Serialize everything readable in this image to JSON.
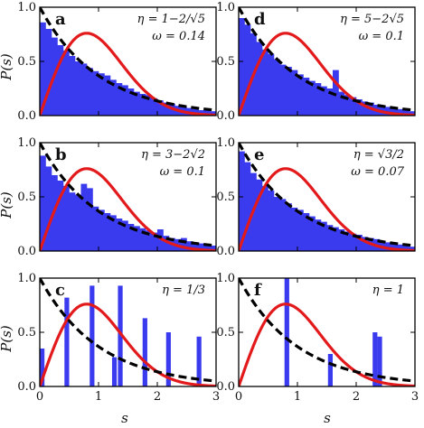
{
  "figure": {
    "x_label": "s",
    "y_label": "P(s)"
  },
  "colors": {
    "histogram": "#3a3aee",
    "red_curve": "#e31a1c",
    "dashed_curve": "#000000",
    "axis": "#000000"
  },
  "chart_data": [
    {
      "panel": "a",
      "type": "bar",
      "annotation": {
        "line1": "η = 1−2/√5",
        "line2": "ω = 0.14"
      },
      "xlim": [
        0,
        3
      ],
      "ylim": [
        0,
        1
      ],
      "xticks": [
        "0",
        "1",
        "2",
        "3"
      ],
      "yticks": [
        "0.0",
        "0.5",
        "1.0"
      ],
      "bin_width": 0.1,
      "histogram": [
        0.86,
        0.8,
        0.72,
        0.65,
        0.6,
        0.55,
        0.5,
        0.48,
        0.44,
        0.41,
        0.39,
        0.37,
        0.33,
        0.3,
        0.28,
        0.25,
        0.22,
        0.2,
        0.19,
        0.16,
        0.14,
        0.12,
        0.11,
        0.09,
        0.08,
        0.07,
        0.06,
        0.05,
        0.05,
        0.04
      ],
      "series": [
        {
          "name": "",
          "style": "red-solid",
          "curve": "wigner"
        },
        {
          "name": "",
          "style": "black-dashed",
          "curve": "poisson"
        }
      ]
    },
    {
      "panel": "d",
      "type": "bar",
      "annotation": {
        "line1": "η = 5−2√5",
        "line2": "ω = 0.1"
      },
      "xlim": [
        0,
        3
      ],
      "ylim": [
        0,
        1
      ],
      "xticks": [
        "0",
        "1",
        "2",
        "3"
      ],
      "yticks": [
        "0.0",
        "0.5",
        "1.0"
      ],
      "bin_width": 0.1,
      "histogram": [
        0.9,
        0.84,
        0.76,
        0.68,
        0.61,
        0.57,
        0.52,
        0.47,
        0.45,
        0.42,
        0.38,
        0.35,
        0.32,
        0.3,
        0.27,
        0.25,
        0.42,
        0.22,
        0.19,
        0.17,
        0.15,
        0.13,
        0.12,
        0.1,
        0.09,
        0.08,
        0.07,
        0.06,
        0.05,
        0.04
      ],
      "series": [
        {
          "name": "",
          "style": "red-solid",
          "curve": "wigner"
        },
        {
          "name": "",
          "style": "black-dashed",
          "curve": "poisson"
        }
      ]
    },
    {
      "panel": "b",
      "type": "bar",
      "annotation": {
        "line1": "η = 3−2√2",
        "line2": "ω = 0.1"
      },
      "xlim": [
        0,
        3
      ],
      "ylim": [
        0,
        1
      ],
      "xticks": [
        "0",
        "1",
        "2",
        "3"
      ],
      "yticks": [
        "0.0",
        "0.5",
        "1.0"
      ],
      "bin_width": 0.1,
      "histogram": [
        0.88,
        0.78,
        0.7,
        0.65,
        0.6,
        0.54,
        0.52,
        0.62,
        0.58,
        0.41,
        0.38,
        0.35,
        0.33,
        0.3,
        0.28,
        0.25,
        0.23,
        0.21,
        0.19,
        0.17,
        0.2,
        0.14,
        0.12,
        0.11,
        0.12,
        0.09,
        0.08,
        0.07,
        0.06,
        0.05
      ],
      "series": [
        {
          "name": "",
          "style": "red-solid",
          "curve": "wigner"
        },
        {
          "name": "",
          "style": "black-dashed",
          "curve": "poisson"
        }
      ]
    },
    {
      "panel": "e",
      "type": "bar",
      "annotation": {
        "line1": "η = √3/2",
        "line2": "ω = 0.07"
      },
      "xlim": [
        0,
        3
      ],
      "ylim": [
        0,
        1
      ],
      "xticks": [
        "0",
        "1",
        "2",
        "3"
      ],
      "yticks": [
        "0.0",
        "0.5",
        "1.0"
      ],
      "bin_width": 0.1,
      "histogram": [
        0.92,
        0.82,
        0.72,
        0.66,
        0.6,
        0.56,
        0.5,
        0.48,
        0.44,
        0.4,
        0.38,
        0.35,
        0.32,
        0.29,
        0.27,
        0.24,
        0.22,
        0.2,
        0.18,
        0.16,
        0.15,
        0.13,
        0.12,
        0.11,
        0.09,
        0.08,
        0.07,
        0.06,
        0.05,
        0.04
      ],
      "series": [
        {
          "name": "",
          "style": "red-solid",
          "curve": "wigner"
        },
        {
          "name": "",
          "style": "black-dashed",
          "curve": "poisson"
        }
      ]
    },
    {
      "panel": "c",
      "type": "bar",
      "annotation": {
        "line1": "η = 1/3",
        "line2": ""
      },
      "xlim": [
        0,
        3
      ],
      "ylim": [
        0,
        1
      ],
      "xticks": [
        "0",
        "1",
        "2",
        "3"
      ],
      "yticks": [
        "0.0",
        "0.5",
        "1.0"
      ],
      "bin_width": 0.08,
      "spikes": [
        {
          "x": 0.0,
          "y": 0.35
        },
        {
          "x": 0.42,
          "y": 0.82
        },
        {
          "x": 0.85,
          "y": 0.93
        },
        {
          "x": 1.23,
          "y": 0.27
        },
        {
          "x": 1.33,
          "y": 0.93
        },
        {
          "x": 1.75,
          "y": 0.63
        },
        {
          "x": 2.15,
          "y": 0.5
        },
        {
          "x": 2.67,
          "y": 0.46
        }
      ],
      "series": [
        {
          "name": "",
          "style": "red-solid",
          "curve": "wigner"
        },
        {
          "name": "",
          "style": "black-dashed",
          "curve": "poisson"
        }
      ]
    },
    {
      "panel": "f",
      "type": "bar",
      "annotation": {
        "line1": "η = 1",
        "line2": ""
      },
      "xlim": [
        0,
        3
      ],
      "ylim": [
        0,
        1
      ],
      "xticks": [
        "0",
        "1",
        "2",
        "3"
      ],
      "yticks": [
        "0.0",
        "0.5",
        "1.0"
      ],
      "bin_width": 0.08,
      "spikes": [
        {
          "x": 0.78,
          "y": 1.0
        },
        {
          "x": 1.52,
          "y": 0.3
        },
        {
          "x": 2.28,
          "y": 0.5
        },
        {
          "x": 2.36,
          "y": 0.46
        }
      ],
      "series": [
        {
          "name": "",
          "style": "red-solid",
          "curve": "wigner"
        },
        {
          "name": "",
          "style": "black-dashed",
          "curve": "poisson"
        }
      ]
    }
  ]
}
